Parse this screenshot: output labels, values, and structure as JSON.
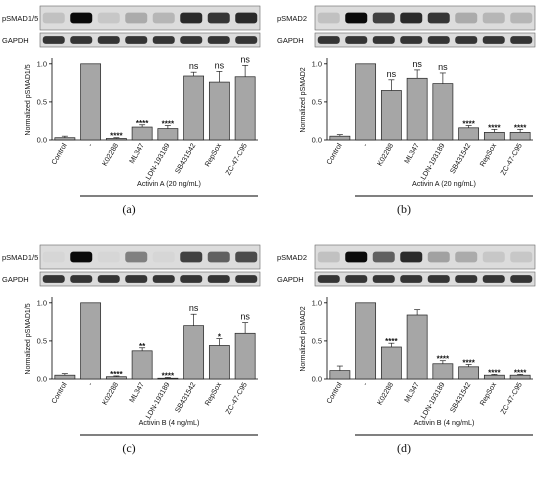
{
  "figure": {
    "panels": [
      {
        "id": "a",
        "panel_label": "(a)",
        "blot_labels": [
          "pSMAD1/5",
          "GAPDH"
        ],
        "condition": "Activin A (20 ng/mL)"
      },
      {
        "id": "b",
        "panel_label": "(b)",
        "blot_labels": [
          "pSMAD2",
          "GAPDH"
        ],
        "condition": "Activin A (20 ng/mL)"
      },
      {
        "id": "c",
        "panel_label": "(c)",
        "blot_labels": [
          "pSMAD1/5",
          "GAPDH"
        ],
        "condition": "Activin B (4 ng/mL)"
      },
      {
        "id": "d",
        "panel_label": "(d)",
        "blot_labels": [
          "pSMAD2",
          "GAPDH"
        ],
        "condition": "Activin B (4 ng/mL)"
      }
    ]
  },
  "chart_data": [
    {
      "type": "bar",
      "categories": [
        "Control",
        "-",
        "K02288",
        "ML347",
        "LDN-193189",
        "SB431542",
        "RepSox",
        "ZC-47-C95"
      ],
      "values": [
        0.03,
        1.0,
        0.02,
        0.17,
        0.15,
        0.84,
        0.76,
        0.83
      ],
      "errors": [
        0.02,
        0.0,
        0.01,
        0.03,
        0.04,
        0.05,
        0.14,
        0.15
      ],
      "significance": [
        "",
        "",
        "****",
        "****",
        "****",
        "ns",
        "ns",
        "ns"
      ],
      "ylabel": "Normalized pSMAD1/5",
      "ylim": [
        0,
        1.0
      ],
      "yticks": [
        "0.0",
        "0.5",
        "1.0"
      ],
      "bar_color": "#a6a6a6"
    },
    {
      "type": "bar",
      "categories": [
        "Control",
        "-",
        "K02288",
        "ML347",
        "LDN-193189",
        "SB431542",
        "RepSox",
        "ZC-47-C95"
      ],
      "values": [
        0.05,
        1.0,
        0.65,
        0.81,
        0.74,
        0.16,
        0.1,
        0.1
      ],
      "errors": [
        0.02,
        0.0,
        0.14,
        0.11,
        0.14,
        0.03,
        0.04,
        0.04
      ],
      "significance": [
        "",
        "",
        "ns",
        "ns",
        "ns",
        "****",
        "****",
        "****"
      ],
      "ylabel": "Normalized pSMAD2",
      "ylim": [
        0,
        1.0
      ],
      "yticks": [
        "0.0",
        "0.5",
        "1.0"
      ],
      "bar_color": "#a6a6a6"
    },
    {
      "type": "bar",
      "categories": [
        "Control",
        "-",
        "K02288",
        "ML347",
        "LDN-193189",
        "SB431542",
        "RepSox",
        "ZC-47-C95"
      ],
      "values": [
        0.05,
        1.0,
        0.03,
        0.37,
        0.01,
        0.7,
        0.44,
        0.6
      ],
      "errors": [
        0.02,
        0.0,
        0.01,
        0.04,
        0.01,
        0.15,
        0.09,
        0.14
      ],
      "significance": [
        "",
        "",
        "****",
        "**",
        "****",
        "ns",
        "*",
        "ns"
      ],
      "ylabel": "Normalized pSMAD1/5",
      "ylim": [
        0,
        1.0
      ],
      "yticks": [
        "0.0",
        "0.5",
        "1.0"
      ],
      "bar_color": "#a6a6a6"
    },
    {
      "type": "bar",
      "categories": [
        "Control",
        "-",
        "K02288",
        "ML347",
        "LDN-193189",
        "SB431542",
        "RepSox",
        "ZC-47-C95"
      ],
      "values": [
        0.11,
        1.0,
        0.42,
        0.84,
        0.2,
        0.16,
        0.05,
        0.05
      ],
      "errors": [
        0.06,
        0.0,
        0.05,
        0.07,
        0.04,
        0.03,
        0.01,
        0.01
      ],
      "significance": [
        "",
        "",
        "****",
        "",
        "****",
        "****",
        "****",
        "****"
      ],
      "ylabel": "Normalized pSMAD2",
      "ylim": [
        0,
        1.0
      ],
      "yticks": [
        "0.0",
        "0.5",
        "1.0"
      ],
      "bar_color": "#a6a6a6"
    }
  ]
}
